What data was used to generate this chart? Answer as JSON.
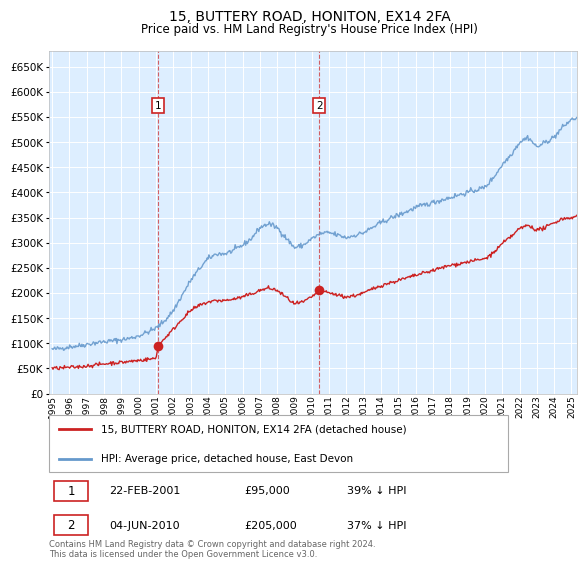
{
  "title": "15, BUTTERY ROAD, HONITON, EX14 2FA",
  "subtitle": "Price paid vs. HM Land Registry's House Price Index (HPI)",
  "title_fontsize": 10,
  "subtitle_fontsize": 8.5,
  "background_color": "#ffffff",
  "plot_bg_color": "#ddeeff",
  "grid_color": "#ffffff",
  "hpi_color": "#6699cc",
  "price_color": "#cc2222",
  "purchase1_year": 2001.13,
  "purchase1_price": 95000,
  "purchase2_year": 2010.42,
  "purchase2_price": 205000,
  "yticks": [
    0,
    50000,
    100000,
    150000,
    200000,
    250000,
    300000,
    350000,
    400000,
    450000,
    500000,
    550000,
    600000,
    650000
  ],
  "xmin": 1994.8,
  "xmax": 2025.3,
  "ymin": 0,
  "ymax": 682000,
  "legend_label_price": "15, BUTTERY ROAD, HONITON, EX14 2FA (detached house)",
  "legend_label_hpi": "HPI: Average price, detached house, East Devon",
  "footer_text": "Contains HM Land Registry data © Crown copyright and database right 2024.\nThis data is licensed under the Open Government Licence v3.0.",
  "table_rows": [
    [
      "1",
      "22-FEB-2001",
      "£95,000",
      "39% ↓ HPI"
    ],
    [
      "2",
      "04-JUN-2010",
      "£205,000",
      "37% ↓ HPI"
    ]
  ],
  "hpi_base_points": [
    [
      1995.0,
      88000
    ],
    [
      1995.5,
      90000
    ],
    [
      1996.0,
      93000
    ],
    [
      1996.5,
      95000
    ],
    [
      1997.0,
      98000
    ],
    [
      1997.5,
      101000
    ],
    [
      1998.0,
      103000
    ],
    [
      1998.5,
      105000
    ],
    [
      1999.0,
      107000
    ],
    [
      1999.5,
      110000
    ],
    [
      2000.0,
      115000
    ],
    [
      2000.5,
      122000
    ],
    [
      2001.0,
      130000
    ],
    [
      2001.5,
      145000
    ],
    [
      2002.0,
      165000
    ],
    [
      2002.5,
      195000
    ],
    [
      2003.0,
      225000
    ],
    [
      2003.5,
      248000
    ],
    [
      2004.0,
      268000
    ],
    [
      2004.5,
      278000
    ],
    [
      2005.0,
      278000
    ],
    [
      2005.5,
      285000
    ],
    [
      2006.0,
      295000
    ],
    [
      2006.5,
      308000
    ],
    [
      2007.0,
      330000
    ],
    [
      2007.5,
      338000
    ],
    [
      2008.0,
      330000
    ],
    [
      2008.5,
      310000
    ],
    [
      2009.0,
      290000
    ],
    [
      2009.5,
      295000
    ],
    [
      2010.0,
      308000
    ],
    [
      2010.5,
      318000
    ],
    [
      2011.0,
      320000
    ],
    [
      2011.5,
      315000
    ],
    [
      2012.0,
      310000
    ],
    [
      2012.5,
      315000
    ],
    [
      2013.0,
      320000
    ],
    [
      2013.5,
      330000
    ],
    [
      2014.0,
      340000
    ],
    [
      2014.5,
      348000
    ],
    [
      2015.0,
      355000
    ],
    [
      2015.5,
      362000
    ],
    [
      2016.0,
      370000
    ],
    [
      2016.5,
      375000
    ],
    [
      2017.0,
      380000
    ],
    [
      2017.5,
      385000
    ],
    [
      2018.0,
      390000
    ],
    [
      2018.5,
      395000
    ],
    [
      2019.0,
      400000
    ],
    [
      2019.5,
      405000
    ],
    [
      2020.0,
      410000
    ],
    [
      2020.5,
      430000
    ],
    [
      2021.0,
      455000
    ],
    [
      2021.5,
      475000
    ],
    [
      2022.0,
      500000
    ],
    [
      2022.5,
      510000
    ],
    [
      2023.0,
      490000
    ],
    [
      2023.5,
      500000
    ],
    [
      2024.0,
      510000
    ],
    [
      2024.5,
      530000
    ],
    [
      2025.0,
      545000
    ],
    [
      2025.3,
      548000
    ]
  ],
  "price_base_points": [
    [
      1995.0,
      50000
    ],
    [
      1995.5,
      51000
    ],
    [
      1996.0,
      52000
    ],
    [
      1996.5,
      53000
    ],
    [
      1997.0,
      55000
    ],
    [
      1997.5,
      57000
    ],
    [
      1998.0,
      59000
    ],
    [
      1998.5,
      61000
    ],
    [
      1999.0,
      62000
    ],
    [
      1999.5,
      64000
    ],
    [
      2000.0,
      66000
    ],
    [
      2000.5,
      68000
    ],
    [
      2001.0,
      70000
    ],
    [
      2001.13,
      95000
    ],
    [
      2001.5,
      110000
    ],
    [
      2002.0,
      128000
    ],
    [
      2002.5,
      148000
    ],
    [
      2003.0,
      165000
    ],
    [
      2003.5,
      175000
    ],
    [
      2004.0,
      182000
    ],
    [
      2004.5,
      185000
    ],
    [
      2005.0,
      185000
    ],
    [
      2005.5,
      188000
    ],
    [
      2006.0,
      192000
    ],
    [
      2006.5,
      198000
    ],
    [
      2007.0,
      205000
    ],
    [
      2007.5,
      210000
    ],
    [
      2008.0,
      205000
    ],
    [
      2008.5,
      192000
    ],
    [
      2009.0,
      178000
    ],
    [
      2009.5,
      182000
    ],
    [
      2010.0,
      192000
    ],
    [
      2010.42,
      205000
    ],
    [
      2010.5,
      205000
    ],
    [
      2011.0,
      200000
    ],
    [
      2011.5,
      196000
    ],
    [
      2012.0,
      192000
    ],
    [
      2012.5,
      195000
    ],
    [
      2013.0,
      200000
    ],
    [
      2013.5,
      208000
    ],
    [
      2014.0,
      215000
    ],
    [
      2014.5,
      220000
    ],
    [
      2015.0,
      225000
    ],
    [
      2015.5,
      230000
    ],
    [
      2016.0,
      235000
    ],
    [
      2016.5,
      240000
    ],
    [
      2017.0,
      245000
    ],
    [
      2017.5,
      250000
    ],
    [
      2018.0,
      255000
    ],
    [
      2018.5,
      258000
    ],
    [
      2019.0,
      262000
    ],
    [
      2019.5,
      265000
    ],
    [
      2020.0,
      268000
    ],
    [
      2020.5,
      280000
    ],
    [
      2021.0,
      298000
    ],
    [
      2021.5,
      312000
    ],
    [
      2022.0,
      328000
    ],
    [
      2022.5,
      335000
    ],
    [
      2023.0,
      325000
    ],
    [
      2023.5,
      330000
    ],
    [
      2024.0,
      340000
    ],
    [
      2024.5,
      348000
    ],
    [
      2025.0,
      350000
    ],
    [
      2025.3,
      352000
    ]
  ]
}
